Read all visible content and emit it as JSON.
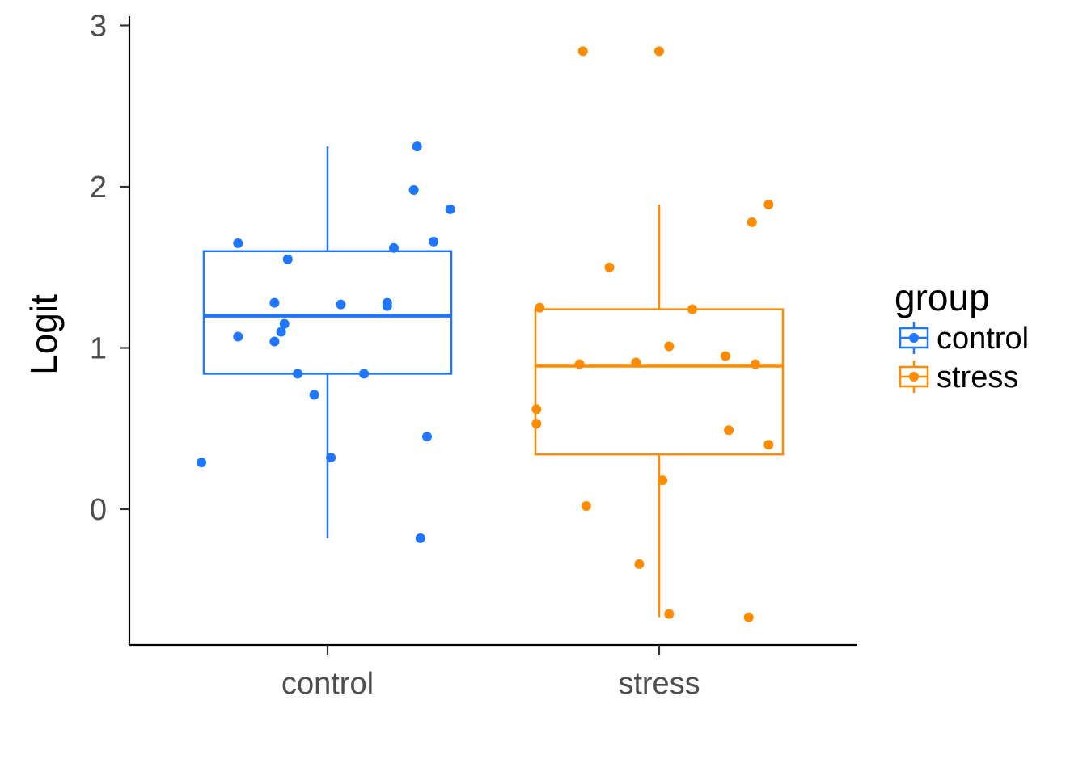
{
  "chart_data": {
    "type": "box",
    "title": "",
    "xlabel": "",
    "ylabel": "Logit",
    "ylim": [
      -0.85,
      3
    ],
    "yticks": [
      0,
      1,
      2,
      3
    ],
    "grid": false,
    "legend": {
      "title": "group",
      "placement": "right"
    },
    "categories": [
      "control",
      "stress"
    ],
    "series": [
      {
        "name": "control",
        "color": "#1f77ff",
        "box": {
          "lower_whisker": -0.18,
          "q1": 0.84,
          "median": 1.2,
          "q3": 1.6,
          "upper_whisker": 2.25
        },
        "points": [
          {
            "jitter": -0.38,
            "y": 0.29
          },
          {
            "jitter": -0.27,
            "y": 1.65
          },
          {
            "jitter": -0.27,
            "y": 1.07
          },
          {
            "jitter": -0.16,
            "y": 1.28
          },
          {
            "jitter": -0.16,
            "y": 1.04
          },
          {
            "jitter": -0.14,
            "y": 1.1
          },
          {
            "jitter": -0.13,
            "y": 1.15
          },
          {
            "jitter": -0.12,
            "y": 1.55
          },
          {
            "jitter": -0.09,
            "y": 0.84
          },
          {
            "jitter": -0.04,
            "y": 0.71
          },
          {
            "jitter": 0.01,
            "y": 0.32
          },
          {
            "jitter": 0.04,
            "y": 1.27
          },
          {
            "jitter": 0.11,
            "y": 0.84
          },
          {
            "jitter": 0.18,
            "y": 1.28
          },
          {
            "jitter": 0.18,
            "y": 1.26
          },
          {
            "jitter": 0.2,
            "y": 1.62
          },
          {
            "jitter": 0.26,
            "y": 1.98
          },
          {
            "jitter": 0.27,
            "y": 2.25
          },
          {
            "jitter": 0.28,
            "y": -0.18
          },
          {
            "jitter": 0.3,
            "y": 0.45
          },
          {
            "jitter": 0.32,
            "y": 1.66
          },
          {
            "jitter": 0.37,
            "y": 1.86
          }
        ]
      },
      {
        "name": "stress",
        "color": "#ff8c00",
        "box": {
          "lower_whisker": -0.67,
          "q1": 0.34,
          "median": 0.89,
          "q3": 1.24,
          "upper_whisker": 1.89
        },
        "points": [
          {
            "jitter": -0.37,
            "y": 0.53
          },
          {
            "jitter": -0.37,
            "y": 0.62
          },
          {
            "jitter": -0.36,
            "y": 1.25
          },
          {
            "jitter": -0.24,
            "y": 0.9
          },
          {
            "jitter": -0.23,
            "y": 2.84
          },
          {
            "jitter": -0.22,
            "y": 0.02
          },
          {
            "jitter": -0.15,
            "y": 1.5
          },
          {
            "jitter": -0.07,
            "y": 0.91
          },
          {
            "jitter": -0.06,
            "y": -0.34
          },
          {
            "jitter": 0.0,
            "y": 2.84
          },
          {
            "jitter": 0.01,
            "y": 0.18
          },
          {
            "jitter": 0.03,
            "y": -0.65
          },
          {
            "jitter": 0.03,
            "y": 1.01
          },
          {
            "jitter": 0.1,
            "y": 1.24
          },
          {
            "jitter": 0.2,
            "y": 0.95
          },
          {
            "jitter": 0.21,
            "y": 0.49
          },
          {
            "jitter": 0.27,
            "y": -0.67
          },
          {
            "jitter": 0.28,
            "y": 1.78
          },
          {
            "jitter": 0.29,
            "y": 0.9
          },
          {
            "jitter": 0.33,
            "y": 0.4
          },
          {
            "jitter": 0.33,
            "y": 1.89
          }
        ]
      }
    ]
  }
}
